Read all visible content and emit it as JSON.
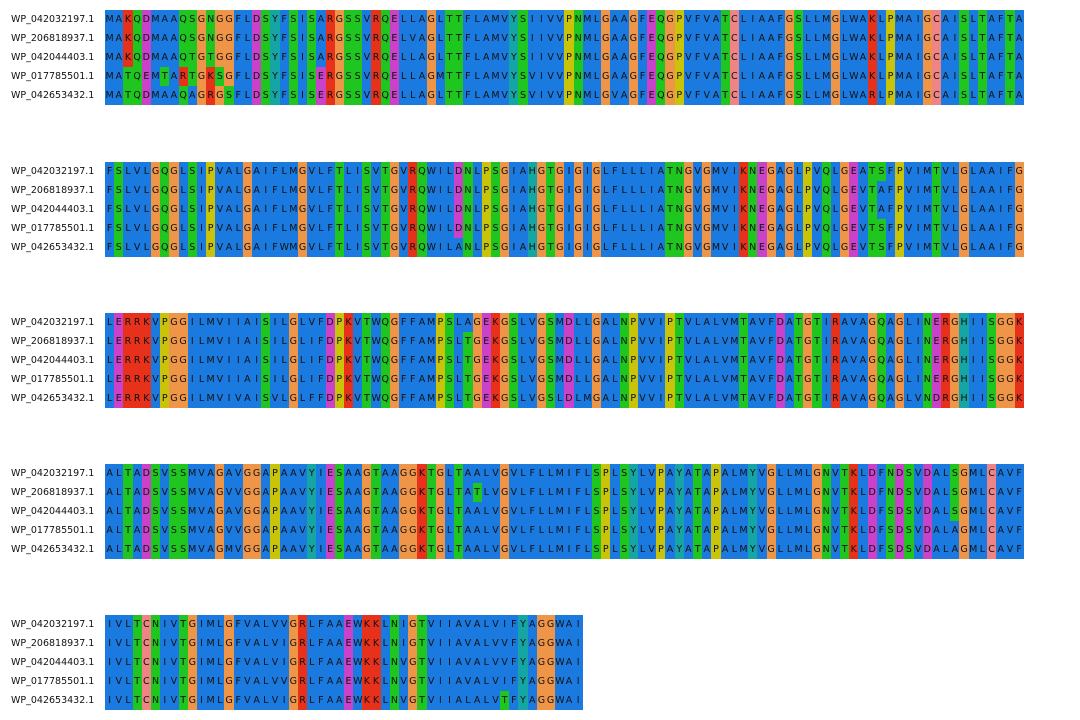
{
  "alignment": {
    "sequence_ids": [
      "WP_042032197.1",
      "WP_206818937.1",
      "WP_042044403.1",
      "WP_017785501.1",
      "WP_042653432.1"
    ],
    "blocks": [
      {
        "rows": [
          "MAKQDMAAQSGNGGFLDSYFSISARGSSVRQELLAGLTTFLAMVYSIIVVPNMLGAAGFEQGPVFVATCLIAAFGSLLMGLWAKLPMAIGCAISLTAFTA",
          "MAKQDMAAQSGNGGFLDSYFSISARGSSVRQELVAGLTTFLAMVYSIIVVPNMLGAAGFEQGPVFVATCLIAAFGSLLMGLWAKLPMAIGCAISLTAFTA",
          "MAKQDMAAQTGTGGFLDSYFSISARGSSVRQELLAGLTTFLAMVYSIIVVPNMLGAAGFEQGPVFVATCLIAAFGSLLMGLWAKLPMAIGCAISLTAFTA",
          "MATQEMTARTGKSGFLDSYFSISERGSSVRQELLAGMTTFLAMVYSVIVVPNMLGAAGFEQGPVFVATCLIAAFGSLLMGLWAKLPMAIGCAISLTAFTA",
          "MATQDMAAQAGRGSFLDSYFSISERGSSVRQELLAGLTTFLAMVYSVIVVPNMLGVAGFEQGPVFVATCLIAAFGSLLMGLWARLPMAIGCAISLTAFTA"
        ]
      },
      {
        "rows": [
          "FSLVLGQGLSIPVALGAIFLMGVLFTLISVTGVRQWILDNLPSGIAHGTGIGIGLFLLLIATNGVGMVIKNEGAGLPVQLGEATSFPVIMTVLGLAAIFG",
          "FSLVLGQGLSIPVALGAIFLMGVLFTLISVTGVRQWILDNLPSGIAHGTGIGIGLFLLLIATNGVGMVIKNEGAGLPVQLGEVTAFPVIMTVLGLAAIFG",
          "FSLVLGQGLSIPVALGAIFLMGVLFTLISVTGVRQWILDNLPSGIAHGTGIGIGLFLLLIATNGVGMVIKNEGAGLPVQLGEVTAFPVIMTVLGLAAIFG",
          "FSLVLGQGLSIPVALGAIFLMGVLFTLISVTGVRQWILDNLPSGIAHGTGIGIGLFLLLIATNGVGMVIKNEGAGLPVQLGEVTSFPVIMTVLGLAAIFG",
          "FSLVLGQGLSIPVALGAIFWMGVLFTLISVTGVRQWILANLPSGIAHGTGIGIGLFLLLIATNGVGMVIKNEGAGLPVQLGEVTSFPVIMTVLGLAAIFG"
        ]
      },
      {
        "rows": [
          "LERRKVPGGILMVIIAISILGLVFDPKVTWQGFFAMPSLAGEKGSLVGSMDLLGALNPVVIPTVLALVMTAVFDATGTIRAVAGQAGLINERGHIISGGK",
          "LERRKVPGGILMVIIAISILGLIFDPKVTWQGFFAMPSLTGEKGSLVGSMDLLGALNPVVIPTVLALVMTAVFDATGTIRAVAGQAGLINERGHIISGGK",
          "LERRKVPGGILMVIIAISILGLIFDPKVTWQGFFAMPSLTGEKGSLVGSMDLLGALNPVVIPTVLALVMTAVFDATGTIRAVAGQAGLINERGHIISGGK",
          "LERRKVPGGILMVIIAISILGLIFDPKVTWQGFFAMPSLTGEKGSLVGSMDLLGALNPVVIPTVLALVMTAVFDATGTIRAVAGQAGLINERGHIISGGK",
          "LERRKVPGGILMVIVAISVLGLFFDPKVTWQGFFAMPSLTGEKGSLVGSLDLMGALNPVVIPTVLALVMTAVFDATGTIRAVAGQAGLVNDRGHIISGGK"
        ]
      },
      {
        "rows": [
          "ALTADSVSSMVAGAVGGAPAAVYIESAAGTAAGGKTGLTAALVGVLFLLMIFLSPLSYLVPAYATAPALMYVGLLMLGNVTKLDFNDSVDALSGMLCAVF",
          "ALTADSVSSMVAGVVGGAPAAVYIESAAGTAAGGKTGLTATLVGVLFLLMIFLSPLSYLVPAYATAPALMYVGLLMLGNVTKLDFNDSVDALSGMLCAVF",
          "ALTADSVSSMVAGAVGGAPAAVYIESAAGTAAGGKTGLTAALVGVLFLLMIFLSPLSYLVPAYATAPALMYVGLLMLGNVTKLDFSDSVDALSGMLCAVF",
          "ALTADSVSSMVAGVVGGAPAAVYIESAAGTAAGGKTGLTAALVGVLFLLMIFLSPLSYLVPAYATAPALMYVGLLMLGNVTKLDFSDSVDALAGMLCAVF",
          "ALTADSVSSMVAGMVGGAPAAVYIESAAGTAAGGKTGLTAALVGVLFLLMIFLSPLSYLVPAYATAPALMYVGLLMLGNVTKLDFSDSVDALAGMLCAVF"
        ]
      },
      {
        "rows": [
          "IVLTCNIVTGIMLGFVALVVGRLFAAEWKKLNIGTVIIAVALVIFYAGGWAI",
          "IVLTCNIVTGIMLGFVALVIGRLFAAEWKKLNIGTVIIAVALVVFYAGGWAI",
          "IVLTCNIVTGIMLGFVALVIGRLFAAEWKKLNVGTVIIAVALVVFYAGGWAI",
          "IVLTCNIVTGIMLGFVALVVGRLFAAEWKKLNVGTVIIAVALVIFYAGGWAI",
          "IVLTCNIVTGIMLGFVALVIGRLFAAEWKKLNVGTVIIALALVTFYAGGWAI"
        ]
      }
    ]
  }
}
